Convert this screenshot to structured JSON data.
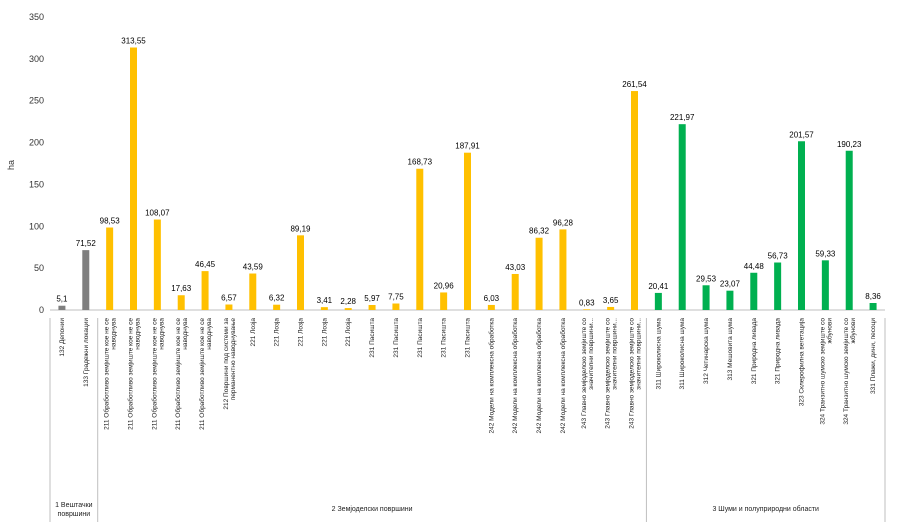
{
  "chart_data": {
    "type": "bar",
    "ylabel": "ha",
    "ylim": [
      0,
      350
    ],
    "yticks": [
      0,
      50,
      100,
      150,
      200,
      250,
      300,
      350
    ],
    "grid": false,
    "colors": {
      "gray": "#7f7f7f",
      "yellow": "#ffc000",
      "green": "#00b050"
    },
    "categories": [
      "132 Депонии",
      "133 Градежни локации",
      "211 Обработливо земјиште кое не се наводнува",
      "211 Обработливо земјиште кое не се наводнува",
      "211 Обработливо земјиште кое не се наводнува",
      "211 Обработливо земјиште кое не се наводнува",
      "211 Обработливо земјиште кое не се наводнува",
      "212 Површини под системи за перманентно наводнување",
      "221 Лозја",
      "221 Лозја",
      "221 Лозја",
      "221 Лозја",
      "221 Лозја",
      "231 Пасишта",
      "231 Пасишта",
      "231 Пасишта",
      "231 Пасишта",
      "231 Пасишта",
      "242 Модели на комплексна обработка",
      "242 Модели на комплексна обработка",
      "242 Модели на комплексна обработка",
      "242 Модели на комплексна обработка",
      "243 Главно земјоделско земјиште со значителни површини...",
      "243 Главно земјоделско земјиште со значителни површини...",
      "243 Главно земјоделско земјиште со значителни површини...",
      "311 Широколисна шума",
      "311 Широколисна шума",
      "312 Четинарска шума",
      "313 Мешовита шума",
      "321 Природна ливада",
      "321 Природна ливада",
      "323 Склерофилна вегетација",
      "324 Транзитно шумско земјиште со жбунови",
      "324 Транзитно шумско земјиште со жбунови",
      "331 Плажи, дини, песоци"
    ],
    "values": [
      5.1,
      71.52,
      98.53,
      313.55,
      108.07,
      17.63,
      46.45,
      6.57,
      43.59,
      6.32,
      89.19,
      3.41,
      2.28,
      5.97,
      7.75,
      168.73,
      20.96,
      187.91,
      6.03,
      43.03,
      86.32,
      96.28,
      0.83,
      3.65,
      261.54,
      20.41,
      221.97,
      29.53,
      23.07,
      44.48,
      56.73,
      201.57,
      59.33,
      190.23,
      8.36
    ],
    "value_labels": [
      "5,1",
      "71,52",
      "98,53",
      "313,55",
      "108,07",
      "17,63",
      "46,45",
      "6,57",
      "43,59",
      "6,32",
      "89,19",
      "3,41",
      "2,28",
      "5,97",
      "7,75",
      "168,73",
      "20,96",
      "187,91",
      "6,03",
      "43,03",
      "86,32",
      "96,28",
      "0,83",
      "3,65",
      "261,54",
      "20,41",
      "221,97",
      "29,53",
      "23,07",
      "44,48",
      "56,73",
      "201,57",
      "59,33",
      "190,23",
      "8,36"
    ],
    "bar_colors": [
      "gray",
      "gray",
      "yellow",
      "yellow",
      "yellow",
      "yellow",
      "yellow",
      "yellow",
      "yellow",
      "yellow",
      "yellow",
      "yellow",
      "yellow",
      "yellow",
      "yellow",
      "yellow",
      "yellow",
      "yellow",
      "yellow",
      "yellow",
      "yellow",
      "yellow",
      "yellow",
      "yellow",
      "yellow",
      "green",
      "green",
      "green",
      "green",
      "green",
      "green",
      "green",
      "green",
      "green",
      "green"
    ],
    "groups": [
      {
        "name": "1 Вештачки површини",
        "count": 2
      },
      {
        "name": "2 Земјоделски површини",
        "count": 23
      },
      {
        "name": "3 Шуми и полуприродни области",
        "count": 10
      }
    ]
  }
}
